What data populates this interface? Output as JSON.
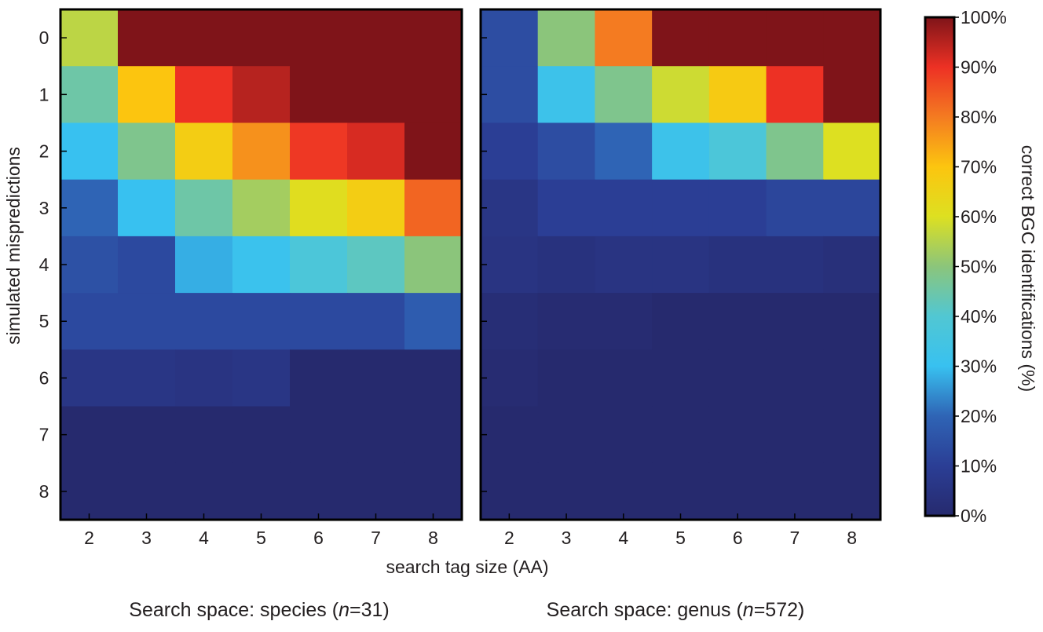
{
  "chart_data": [
    {
      "type": "heatmap",
      "caption": "Search space: species (n=31)",
      "caption_parts": [
        "Search space: species (",
        "n",
        "=31)"
      ],
      "xlabel": "search tag size (AA)",
      "ylabel": "simulated mispredictions",
      "x": [
        "2",
        "3",
        "4",
        "5",
        "6",
        "7",
        "8"
      ],
      "y": [
        "0",
        "1",
        "2",
        "3",
        "4",
        "5",
        "6",
        "7",
        "8"
      ],
      "values": [
        [
          56,
          100,
          100,
          100,
          100,
          100,
          100
        ],
        [
          45,
          70,
          90,
          95,
          100,
          100,
          100
        ],
        [
          30,
          48,
          67,
          77,
          89,
          92,
          100
        ],
        [
          20,
          30,
          45,
          53,
          61,
          67,
          83
        ],
        [
          15,
          13,
          28,
          31,
          38,
          42,
          50
        ],
        [
          13,
          13,
          13,
          13,
          13,
          13,
          18
        ],
        [
          6,
          6,
          5,
          6,
          0,
          0,
          0
        ],
        [
          0,
          0,
          0,
          0,
          0,
          0,
          0
        ],
        [
          0,
          0,
          0,
          0,
          0,
          0,
          0
        ]
      ]
    },
    {
      "type": "heatmap",
      "caption": "Search space: genus (n=572)",
      "caption_parts": [
        "Search space: genus (",
        "n",
        "=572)"
      ],
      "xlabel": "search tag size (AA)",
      "ylabel": "simulated mispredictions",
      "x": [
        "2",
        "3",
        "4",
        "5",
        "6",
        "7",
        "8"
      ],
      "y": [
        "0",
        "1",
        "2",
        "3",
        "4",
        "5",
        "6",
        "7",
        "8"
      ],
      "values": [
        [
          14,
          50,
          80,
          100,
          100,
          100,
          100
        ],
        [
          14,
          32,
          48,
          58,
          68,
          90,
          100
        ],
        [
          10,
          14,
          20,
          32,
          38,
          48,
          60
        ],
        [
          6,
          10,
          10,
          10,
          10,
          12,
          12
        ],
        [
          5,
          4,
          5,
          5,
          4,
          4,
          3
        ],
        [
          2,
          1,
          1,
          0,
          0,
          0,
          0
        ],
        [
          1,
          0,
          0,
          0,
          0,
          0,
          0
        ],
        [
          0,
          0,
          0,
          0,
          0,
          0,
          0
        ],
        [
          0,
          0,
          0,
          0,
          0,
          0,
          0
        ]
      ]
    }
  ],
  "colorbar": {
    "label": "correct BGC identifications (%)",
    "range": [
      0,
      100
    ],
    "ticks": [
      "0%",
      "10%",
      "20%",
      "30%",
      "40%",
      "50%",
      "60%",
      "70%",
      "80%",
      "90%",
      "100%"
    ],
    "colormap": "jet",
    "colors": [
      "#262a6e",
      "#2b3e95",
      "#2f64b5",
      "#38c1f0",
      "#51c7d3",
      "#8bc57b",
      "#dde021",
      "#fcc50f",
      "#f47b21",
      "#ed3124",
      "#7f1419"
    ]
  }
}
